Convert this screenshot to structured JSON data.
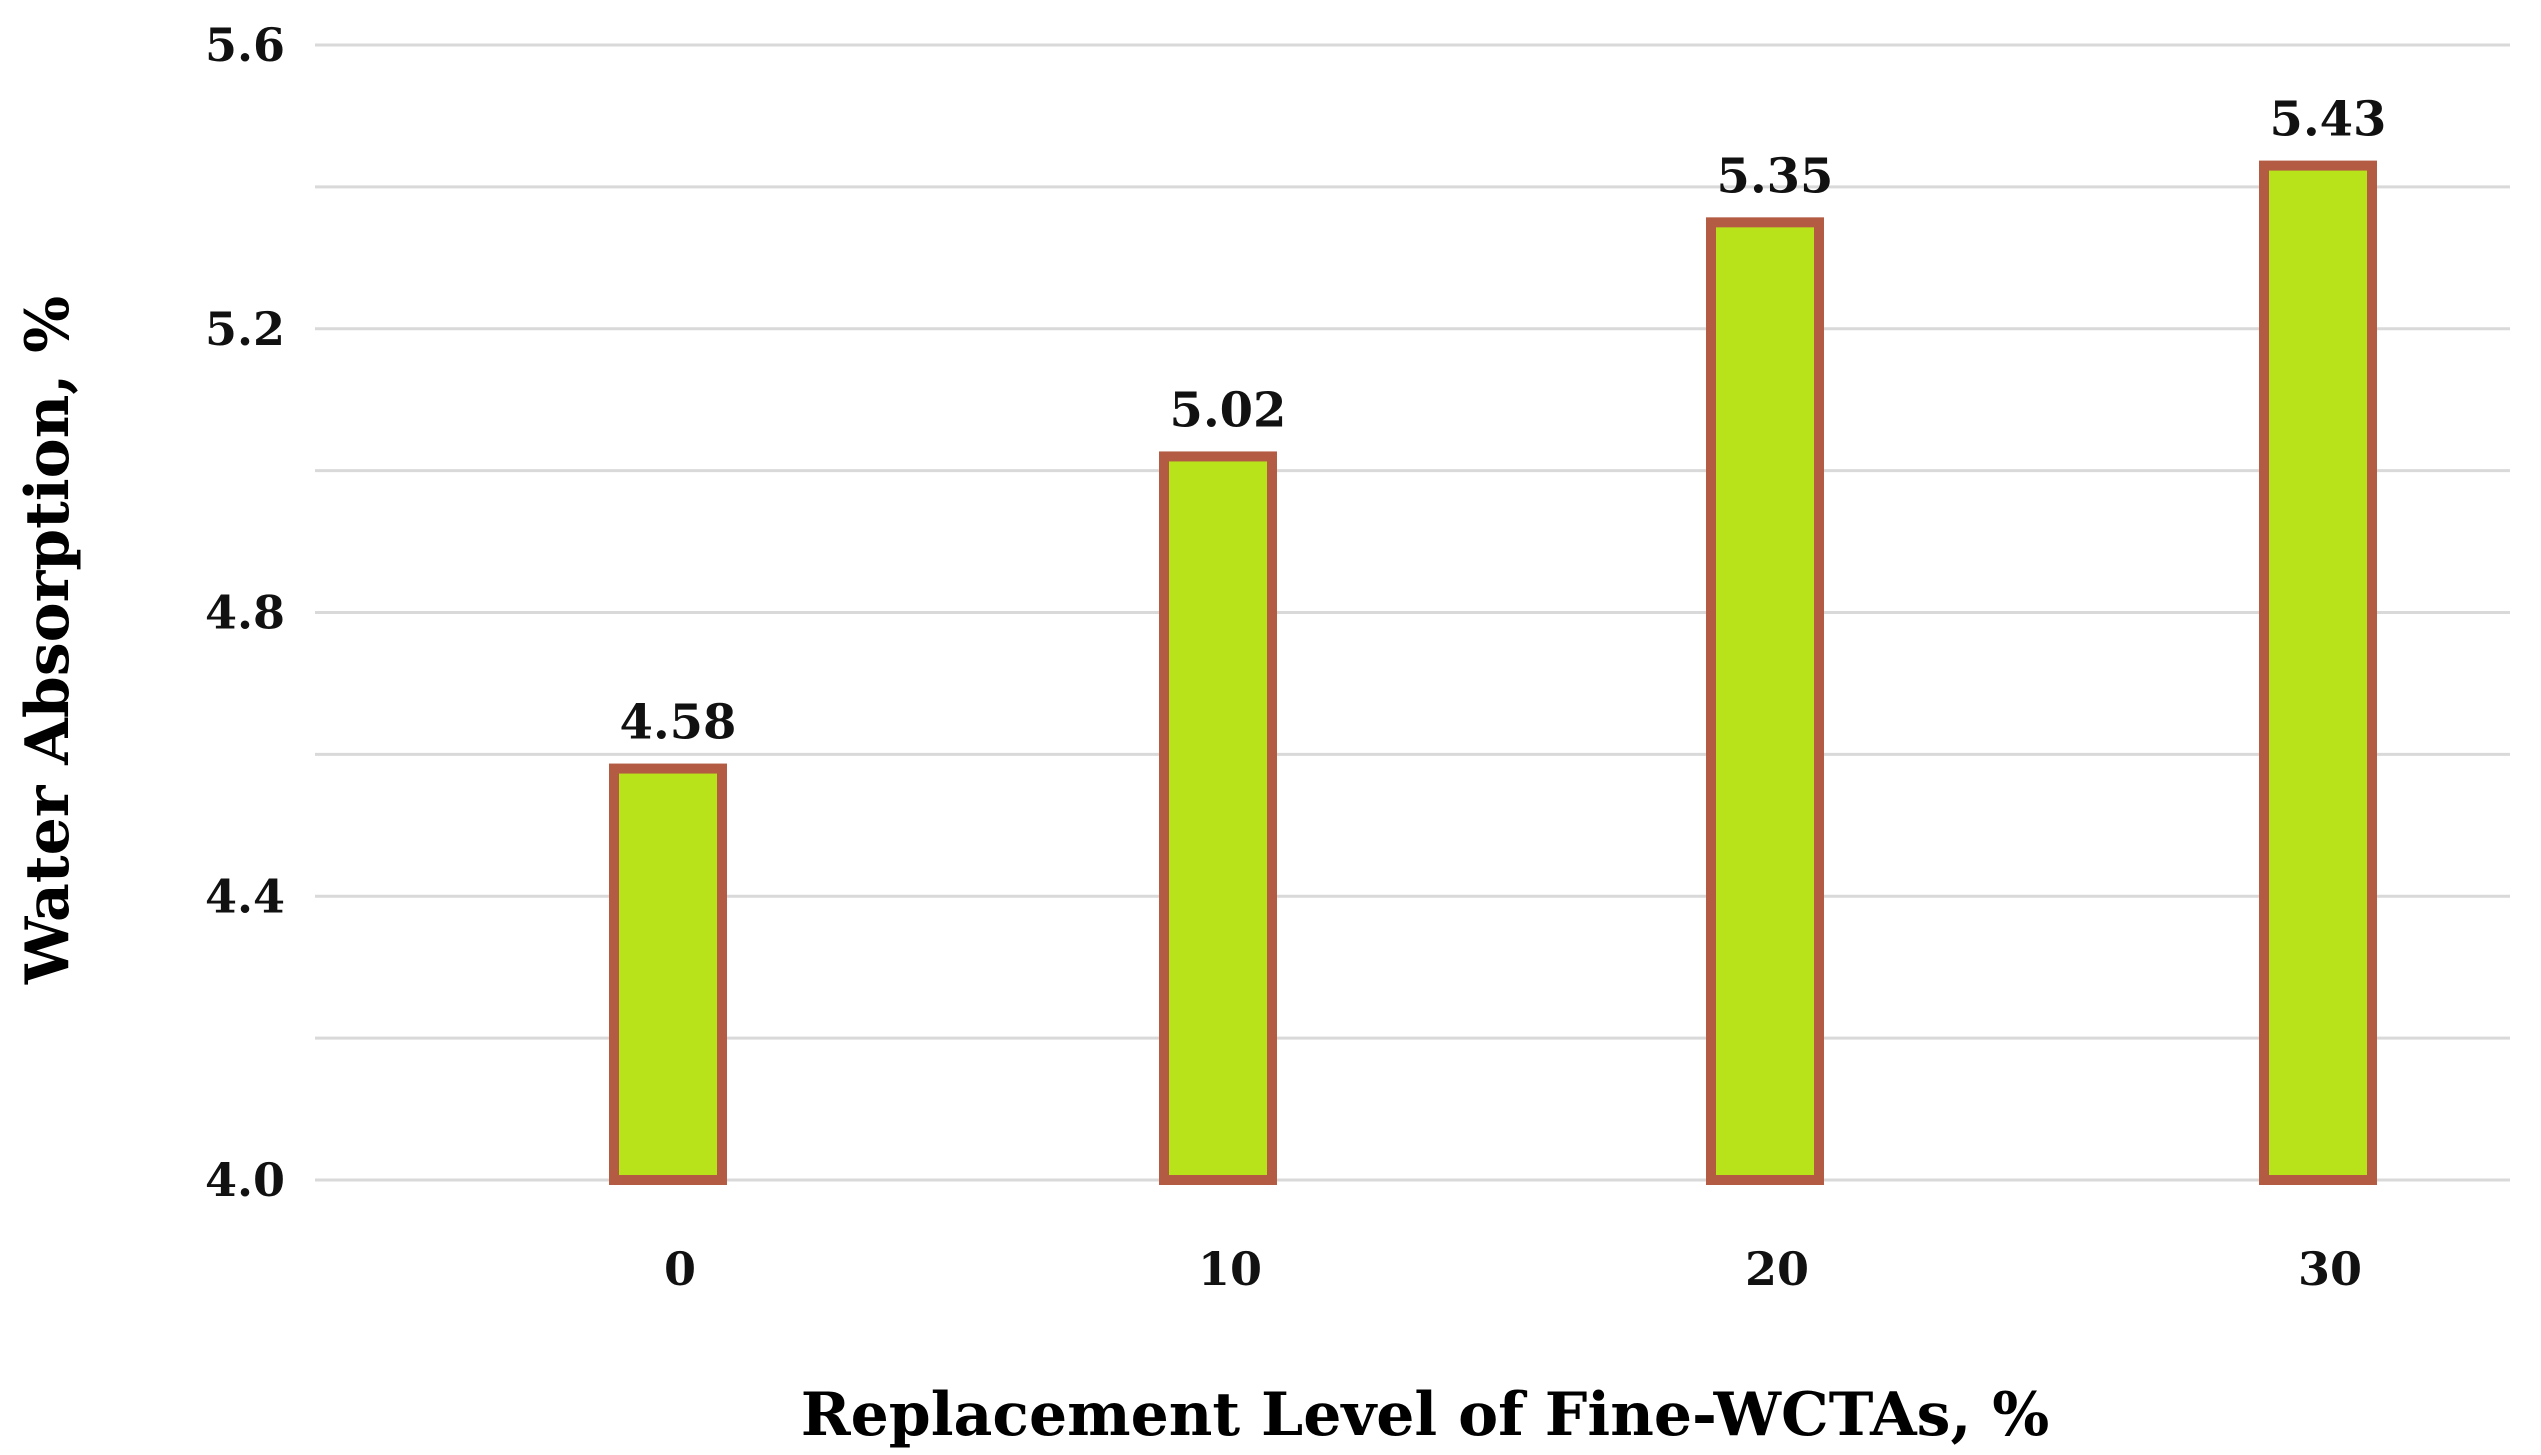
{
  "chart_data": {
    "type": "bar",
    "categories": [
      "0",
      "10",
      "20",
      "30"
    ],
    "values": [
      4.58,
      5.02,
      5.35,
      5.43
    ],
    "data_labels": [
      "4.58",
      "5.02",
      "5.35",
      "5.43"
    ],
    "xlabel": "Replacement Level of Fine-WCTAs, %",
    "ylabel": "Water Absorption, %",
    "ylim": [
      4.0,
      5.6
    ],
    "yticks": [
      4.0,
      4.4,
      4.8,
      5.2,
      5.6
    ],
    "ytick_labels": [
      "4.0",
      "4.4",
      "4.8",
      "5.2",
      "5.6"
    ],
    "minor_gridlines": [
      4.2,
      4.6,
      5.0,
      5.4
    ],
    "grid": true,
    "legend": "none",
    "colors": {
      "bar_fill": "#b8e21a",
      "bar_border": "#b35c43",
      "grid": "#d9d9d9"
    }
  }
}
